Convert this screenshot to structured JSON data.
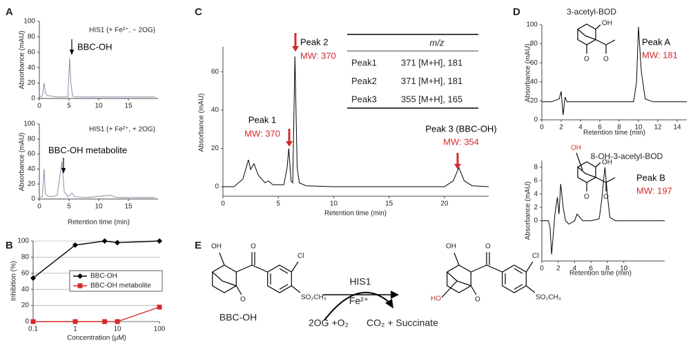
{
  "panels": [
    "A",
    "B",
    "C",
    "D",
    "E"
  ],
  "chart_data": [
    {
      "type": "line",
      "title": "HIS1 (+ Fe²⁺, − 2OG)",
      "y_label": "Absorbance (mAU)",
      "x": [
        0,
        0.5,
        0.8,
        1,
        1.3,
        2,
        3,
        4,
        4.8,
        5.1,
        5.3,
        5.6,
        6,
        8,
        10,
        12,
        14,
        16,
        18,
        19.5
      ],
      "series": [
        {
          "color": "#8c8ca8",
          "values": [
            2,
            3,
            20,
            8,
            4,
            3,
            2,
            2,
            2,
            52,
            20,
            3,
            2,
            2,
            2,
            2,
            2,
            2,
            2,
            2
          ]
        }
      ],
      "xlim": [
        0,
        20
      ],
      "xticks": [
        0,
        5,
        10,
        15
      ],
      "ylim": [
        0,
        100
      ],
      "yticks": [
        0,
        20,
        40,
        60,
        80,
        100
      ],
      "annotations": [
        {
          "text": "BBC-OH",
          "color": "#000000"
        }
      ]
    },
    {
      "type": "line",
      "title": "HIS1 (+ Fe²⁺, + 2OG)",
      "x_label": "Retention time (min)",
      "y_label": "Absorbance (mAU)",
      "x": [
        0,
        0.5,
        0.8,
        1,
        1.3,
        2,
        3,
        3.8,
        4.2,
        4.8,
        5.5,
        6,
        8,
        12,
        13,
        15,
        17,
        19.5
      ],
      "series": [
        {
          "color": "#8c8ca8",
          "values": [
            2,
            3,
            40,
            8,
            4,
            3,
            5,
            50,
            10,
            3,
            8,
            3,
            2,
            5,
            2,
            2,
            2,
            2
          ]
        }
      ],
      "xlim": [
        0,
        20
      ],
      "xticks": [
        0,
        5,
        10,
        15
      ],
      "ylim": [
        0,
        100
      ],
      "yticks": [
        0,
        20,
        40,
        60,
        80,
        100
      ],
      "annotations": [
        {
          "text": "BBC-OH metabolite",
          "color": "#000000"
        }
      ]
    },
    {
      "type": "line",
      "x_label": "Concentration (μM)",
      "y_label": "Inhibition (%)",
      "log_x": true,
      "grid": true,
      "legend": "lower right",
      "x": [
        0.1,
        1,
        5,
        10,
        100
      ],
      "series": [
        {
          "name": "BBC-OH",
          "color": "#000000",
          "marker": "diamond",
          "values": [
            54,
            95,
            100,
            98,
            100
          ]
        },
        {
          "name": "BBC-OH metabolite",
          "color": "#d42a2a",
          "marker": "square",
          "values": [
            0,
            0,
            0,
            0,
            18
          ]
        }
      ],
      "xlim": [
        0.1,
        100
      ],
      "xticks": [
        0.1,
        1,
        10,
        100
      ],
      "ylim": [
        0,
        100
      ],
      "yticks": [
        0,
        20,
        40,
        60,
        80,
        100
      ]
    },
    {
      "type": "line",
      "x_label": "Retention time (min)",
      "y_label": "Absorbance (mAU)",
      "x": [
        0,
        1,
        1.8,
        2.1,
        2.3,
        2.5,
        2.8,
        3.2,
        3.8,
        4.1,
        4.5,
        5.5,
        5.8,
        5.95,
        6.15,
        6.3,
        6.5,
        6.7,
        6.9,
        7.5,
        10,
        15,
        20,
        20.8,
        21.3,
        21.8,
        22.5,
        24
      ],
      "series": [
        {
          "color": "#000000",
          "values": [
            0,
            0,
            4,
            10,
            14,
            9,
            12,
            6,
            2,
            3,
            1,
            1,
            10,
            20,
            3,
            2,
            68,
            10,
            2,
            0.5,
            0,
            0,
            0,
            3,
            10,
            3,
            0.5,
            0
          ]
        }
      ],
      "xlim": [
        0,
        24
      ],
      "xticks": [
        0,
        5,
        10,
        15,
        20
      ],
      "ylim": [
        -5,
        73
      ],
      "yticks": [
        0,
        20,
        40,
        60
      ],
      "annotations": [
        {
          "text": "Peak 1",
          "color": "#000000"
        },
        {
          "text": "MW: 370",
          "color": "#d42a2a"
        },
        {
          "text": "Peak 2",
          "color": "#000000"
        },
        {
          "text": "MW: 370",
          "color": "#d42a2a"
        },
        {
          "text": "Peak 3 (BBC-OH)",
          "color": "#000000"
        },
        {
          "text": "MW: 354",
          "color": "#d42a2a"
        }
      ],
      "table": {
        "header": "m/z",
        "rows": [
          [
            "Peak1",
            "371 [M+H], 181"
          ],
          [
            "Peak2",
            "371 [M+H], 181"
          ],
          [
            "Peak3",
            "355 [M+H], 165"
          ]
        ]
      }
    },
    {
      "type": "line",
      "title": "3-acetyl-BOD",
      "x_label": "Retention time (min)",
      "y_label": "Absorbance (mAU)",
      "x": [
        0,
        1,
        1.8,
        2.0,
        2.2,
        2.4,
        2.6,
        3,
        5,
        8,
        9.5,
        9.8,
        10.0,
        10.3,
        10.7,
        11.5,
        13,
        15
      ],
      "series": [
        {
          "color": "#000000",
          "values": [
            19,
            19,
            22,
            30,
            5,
            24,
            19,
            19,
            19,
            19,
            19,
            40,
            98,
            50,
            22,
            19,
            19,
            19
          ]
        }
      ],
      "xlim": [
        0,
        15
      ],
      "xticks": [
        0,
        2,
        4,
        6,
        8,
        10,
        12,
        14
      ],
      "ylim": [
        0,
        100
      ],
      "yticks": [
        0,
        20,
        40,
        60,
        80,
        100
      ],
      "annotations": [
        {
          "text": "Peak A",
          "color": "#000000"
        },
        {
          "text": "MW: 181",
          "color": "#d42a2a"
        }
      ]
    },
    {
      "type": "line",
      "title": "8-OH-3-acetyl-BOD",
      "x_label": "Retention time (min)",
      "y_label": "Absorbance (mAU)",
      "x": [
        0,
        0.8,
        1.0,
        1.2,
        1.4,
        1.6,
        1.9,
        2.1,
        2.3,
        2.6,
        2.9,
        3.3,
        4,
        4.3,
        5,
        6,
        7,
        7.3,
        7.7,
        8,
        8.3,
        9,
        12,
        15
      ],
      "series": [
        {
          "color": "#000000",
          "values": [
            0,
            0,
            -1,
            -5,
            -2,
            1,
            3.5,
            1,
            5.5,
            2,
            0,
            -0.5,
            0,
            1,
            0,
            0,
            0.3,
            3,
            8,
            4,
            0.5,
            0,
            0,
            0
          ]
        }
      ],
      "xlim": [
        0,
        15
      ],
      "xticks": [
        0,
        2,
        4,
        6,
        8,
        10
      ],
      "ylim": [
        -6,
        9
      ],
      "yticks": [
        0,
        2,
        4,
        6,
        8
      ],
      "annotations": [
        {
          "text": "Peak B",
          "color": "#000000"
        },
        {
          "text": "MW: 197",
          "color": "#d42a2a"
        }
      ]
    }
  ],
  "structures": {
    "d1": [
      "OH",
      "O",
      "O"
    ],
    "d2": [
      "OH",
      "OH",
      "O",
      "O"
    ]
  },
  "scheme": {
    "substrate": {
      "name": "BBC-OH",
      "atoms": [
        "OH",
        "O",
        "Cl",
        "O",
        "SO₂CH₃"
      ]
    },
    "product": {
      "atoms": [
        "OH",
        "O",
        "Cl",
        "O",
        "HO",
        "SO₂CH₃"
      ]
    },
    "enzyme": "HIS1",
    "cofactor": "Fe²⁺",
    "cosubstrates": "2OG +O₂",
    "coproducts": "CO₂ + Succinate"
  }
}
